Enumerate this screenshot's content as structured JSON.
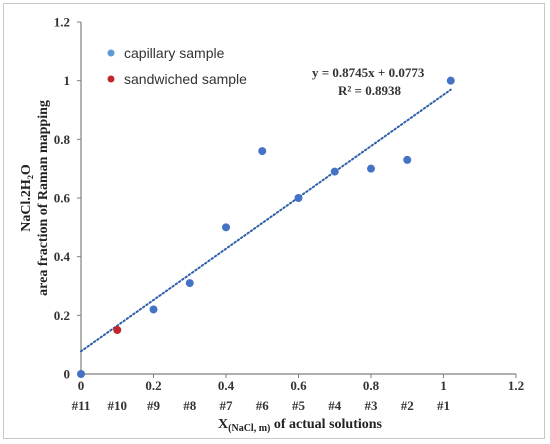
{
  "chart_data": {
    "type": "scatter",
    "xlim": [
      0,
      1.2
    ],
    "ylim": [
      0,
      1.2
    ],
    "x_ticks": [
      "0",
      "0.2",
      "0.4",
      "0.6",
      "0.8",
      "1",
      "1.2"
    ],
    "y_ticks": [
      "0",
      "0.2",
      "0.4",
      "0.6",
      "0.8",
      "1",
      "1.2"
    ],
    "sample_labels": [
      {
        "label": "#11",
        "x": 0.0
      },
      {
        "label": "#10",
        "x": 0.1
      },
      {
        "label": "#9",
        "x": 0.2
      },
      {
        "label": "#8",
        "x": 0.3
      },
      {
        "label": "#7",
        "x": 0.4
      },
      {
        "label": "#6",
        "x": 0.5
      },
      {
        "label": "#5",
        "x": 0.6
      },
      {
        "label": "#4",
        "x": 0.7
      },
      {
        "label": "#3",
        "x": 0.8
      },
      {
        "label": "#2",
        "x": 0.9
      },
      {
        "label": "#1",
        "x": 1.0
      }
    ],
    "series": [
      {
        "name": "capillary sample",
        "color": "#4472c4",
        "points": [
          {
            "x": 0.0,
            "y": 0.0
          },
          {
            "x": 0.2,
            "y": 0.22
          },
          {
            "x": 0.3,
            "y": 0.31
          },
          {
            "x": 0.4,
            "y": 0.5
          },
          {
            "x": 0.5,
            "y": 0.76
          },
          {
            "x": 0.6,
            "y": 0.6
          },
          {
            "x": 0.7,
            "y": 0.69
          },
          {
            "x": 0.8,
            "y": 0.7
          },
          {
            "x": 0.9,
            "y": 0.73
          },
          {
            "x": 1.0,
            "y": 1.0
          }
        ]
      },
      {
        "name": "sandwiched sample",
        "color": "#c0282b",
        "points": [
          {
            "x": 0.1,
            "y": 0.15
          }
        ]
      }
    ],
    "trendline": {
      "slope": 0.8745,
      "intercept": 0.0773,
      "x_range": [
        0,
        1.0
      ],
      "color": "#2e5fa8",
      "style": "dotted"
    },
    "equation": "y = 0.8745x + 0.0773",
    "r_squared": "R² = 0.8938",
    "ylabel_line1": "NaCl.2H₂O",
    "ylabel_line2": "area fraction of Raman mapping",
    "xlabel_main": "X",
    "xlabel_sub": "(NaCl, m)",
    "xlabel_rest": " of actual solutions",
    "legend_position": "top-left",
    "grid": false
  }
}
